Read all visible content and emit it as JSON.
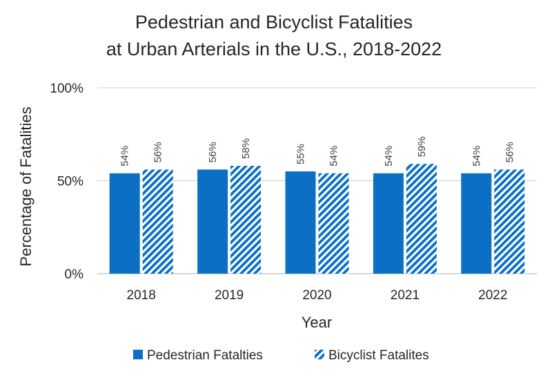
{
  "chart_data": {
    "type": "bar",
    "title": [
      "Pedestrian and Bicyclist Fatalities",
      "at Urban Arterials in the U.S., 2018-2022"
    ],
    "xlabel": "Year",
    "ylabel": "Percentage of Fatalities",
    "categories": [
      "2018",
      "2019",
      "2020",
      "2021",
      "2022"
    ],
    "ylim": [
      0,
      100
    ],
    "yticks": [
      0,
      50,
      100
    ],
    "ytick_labels": [
      "0%",
      "50%",
      "100%"
    ],
    "grid": true,
    "legend_position": "bottom",
    "series": [
      {
        "name": "Pedestrian Fatalties",
        "values": [
          54,
          56,
          55,
          54,
          54
        ],
        "labels": [
          "54%",
          "56%",
          "55%",
          "54%",
          "54%"
        ],
        "color": "#0a6fc5",
        "pattern": "solid"
      },
      {
        "name": "Bicyclist Fatalites",
        "values": [
          56,
          58,
          54,
          59,
          56
        ],
        "labels": [
          "56%",
          "58%",
          "54%",
          "59%",
          "56%"
        ],
        "color": "#0a6fc5",
        "pattern": "diagonal-hatch"
      }
    ]
  }
}
